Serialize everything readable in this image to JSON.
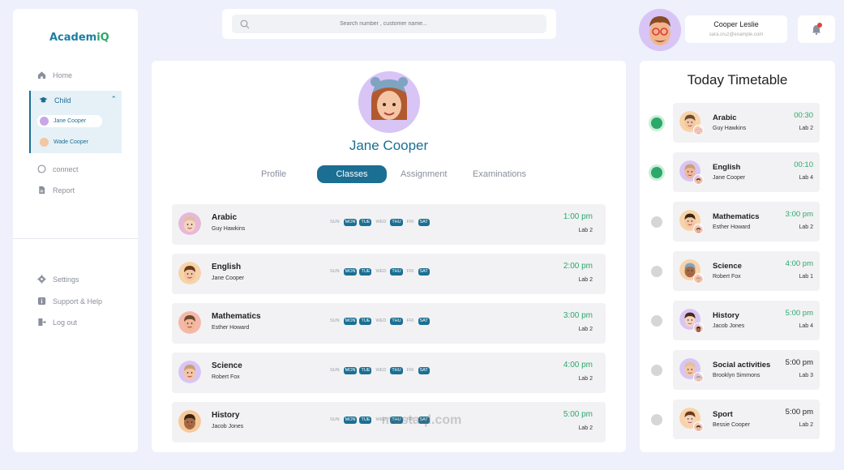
{
  "logo": {
    "text_main": "Academ",
    "text_accent": "iQ"
  },
  "sidebar": {
    "items": [
      {
        "label": "Home",
        "icon": "home-icon"
      },
      {
        "label": "Child",
        "icon": "graduation-cap-icon"
      },
      {
        "label": "connect",
        "icon": "chat-icon"
      },
      {
        "label": "Report",
        "icon": "document-icon"
      }
    ],
    "children": [
      {
        "label": "Jane Cooper",
        "active": true
      },
      {
        "label": "Wade Cooper",
        "active": false
      }
    ],
    "bottom_items": [
      {
        "label": "Settings",
        "icon": "gear-icon"
      },
      {
        "label": "Support & Help",
        "icon": "info-icon"
      },
      {
        "label": "Log out",
        "icon": "logout-icon"
      }
    ]
  },
  "search": {
    "placeholder": "Search number , customer name..."
  },
  "user": {
    "name": "Cooper Leslie",
    "email": "sara.cruz@example.com"
  },
  "profile": {
    "name": "Jane Cooper",
    "tabs": [
      "Profile",
      "Classes",
      "Assignment",
      "Examinations"
    ],
    "active_tab": "Classes"
  },
  "days": [
    "SUN",
    "MON",
    "TUE",
    "WED",
    "THU",
    "FRI",
    "SAT"
  ],
  "classes": [
    {
      "subject": "Arabic",
      "teacher": "Guy Hawkins",
      "time": "1:00 pm",
      "lab": "Lab 2",
      "days_on": [
        "MON",
        "TUE",
        "THU",
        "SAT"
      ],
      "avatar_color": "#e8b8d8"
    },
    {
      "subject": "English",
      "teacher": "Jane Cooper",
      "time": "2:00 pm",
      "lab": "Lab 2",
      "days_on": [
        "MON",
        "TUE",
        "THU",
        "SAT"
      ],
      "avatar_color": "#f7d3a8"
    },
    {
      "subject": "Mathematics",
      "teacher": "Esther Howard",
      "time": "3:00 pm",
      "lab": "Lab 2",
      "days_on": [
        "MON",
        "TUE",
        "THU",
        "SAT"
      ],
      "avatar_color": "#f5b8a8"
    },
    {
      "subject": "Science",
      "teacher": "Robert Fox",
      "time": "4:00 pm",
      "lab": "Lab 2",
      "days_on": [
        "MON",
        "TUE",
        "THU",
        "SAT"
      ],
      "avatar_color": "#d8c5f5"
    },
    {
      "subject": "History",
      "teacher": "Jacob Jones",
      "time": "5:00 pm",
      "lab": "Lab 2",
      "days_on": [
        "MON",
        "TUE",
        "THU",
        "SAT"
      ],
      "avatar_color": "#f7c99a"
    }
  ],
  "timetable": {
    "title": "Today Timetable",
    "items": [
      {
        "subject": "Arabic",
        "teacher": "Guy Hawkins",
        "time": "00:30",
        "lab": "Lab 2",
        "done": true,
        "time_color": "green"
      },
      {
        "subject": "English",
        "teacher": "Jane Cooper",
        "time": "00:10",
        "lab": "Lab 4",
        "done": true,
        "time_color": "green"
      },
      {
        "subject": "Mathematics",
        "teacher": "Esther Howard",
        "time": "3:00 pm",
        "lab": "Lab 2",
        "done": false,
        "time_color": "green"
      },
      {
        "subject": "Science",
        "teacher": "Robert Fox",
        "time": "4:00 pm",
        "lab": "Lab 1",
        "done": false,
        "time_color": "green"
      },
      {
        "subject": "History",
        "teacher": "Jacob Jones",
        "time": "5:00 pm",
        "lab": "Lab 4",
        "done": false,
        "time_color": "green"
      },
      {
        "subject": "Social activities",
        "teacher": "Brooklyn Simmons",
        "time": "5:00 pm",
        "lab": "Lab 3",
        "done": false,
        "time_color": "dark"
      },
      {
        "subject": "Sport",
        "teacher": "Bessie Cooper",
        "time": "5:00 pm",
        "lab": "Lab 2",
        "done": false,
        "time_color": "dark"
      }
    ]
  },
  "watermark": "mostaql.com",
  "colors": {
    "primary": "#1b6f93",
    "green": "#2ba86a",
    "bg": "#eef0fb"
  }
}
